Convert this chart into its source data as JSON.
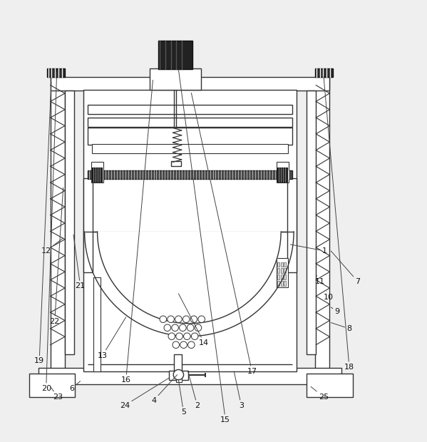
{
  "bg_color": "#efefef",
  "lc": "#333333",
  "dc": "#111111",
  "fig_w": 5.99,
  "fig_h": 6.2,
  "label_data": {
    "1": [
      0.76,
      0.43,
      0.68,
      0.445
    ],
    "2": [
      0.462,
      0.068,
      0.44,
      0.148
    ],
    "3": [
      0.565,
      0.068,
      0.548,
      0.148
    ],
    "4": [
      0.36,
      0.08,
      0.415,
      0.14
    ],
    "5": [
      0.43,
      0.052,
      0.418,
      0.128
    ],
    "6": [
      0.168,
      0.108,
      0.188,
      0.125
    ],
    "7": [
      0.838,
      0.358,
      0.775,
      0.43
    ],
    "8": [
      0.818,
      0.248,
      0.775,
      0.262
    ],
    "9": [
      0.79,
      0.288,
      0.775,
      0.298
    ],
    "10": [
      0.77,
      0.322,
      0.765,
      0.335
    ],
    "11": [
      0.75,
      0.358,
      0.742,
      0.372
    ],
    "12": [
      0.108,
      0.43,
      0.148,
      0.46
    ],
    "13": [
      0.24,
      0.185,
      0.295,
      0.275
    ],
    "14": [
      0.478,
      0.215,
      0.418,
      0.33
    ],
    "15": [
      0.528,
      0.035,
      0.418,
      0.855
    ],
    "16": [
      0.295,
      0.128,
      0.358,
      0.83
    ],
    "17": [
      0.59,
      0.148,
      0.448,
      0.8
    ],
    "18": [
      0.818,
      0.158,
      0.758,
      0.838
    ],
    "19": [
      0.092,
      0.172,
      0.12,
      0.825
    ],
    "20": [
      0.108,
      0.108,
      0.133,
      0.848
    ],
    "21": [
      0.188,
      0.348,
      0.172,
      0.468
    ],
    "22": [
      0.128,
      0.265,
      0.148,
      0.578
    ],
    "23": [
      0.135,
      0.088,
      0.118,
      0.112
    ],
    "24": [
      0.292,
      0.068,
      0.395,
      0.132
    ],
    "25": [
      0.758,
      0.088,
      0.728,
      0.112
    ]
  }
}
